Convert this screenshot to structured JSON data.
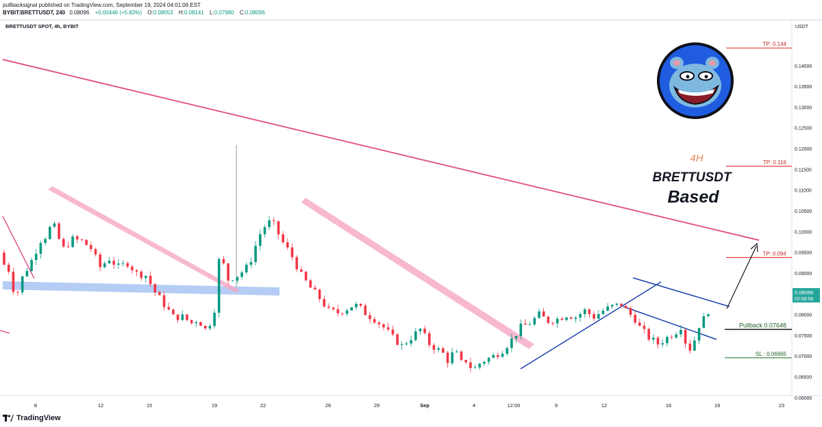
{
  "header": {
    "published_line": "pullbacksignal published on TradingView.com, September 19, 2024 04:01:06 EST",
    "symbol": "BYBIT:BRETTUSDT, 240",
    "last": "0.08096",
    "change": "+0.00446 (+5.83%)",
    "open_label": "O:",
    "open": "0.08053",
    "high_label": "H:",
    "high": "0.08141",
    "low_label": "L:",
    "low": "0.07980",
    "close_label": "C:",
    "close": "0.08096"
  },
  "chart_data": {
    "type": "candlestick",
    "title": "BRETTUSDT SPOT, 4h, BYBIT",
    "currency_label": "USDT",
    "ylim": [
      0.0584,
      0.1478
    ],
    "y_ticks": [
      "0.14000",
      "0.13500",
      "0.13000",
      "0.12500",
      "0.12000",
      "0.11500",
      "0.11000",
      "0.10500",
      "0.10000",
      "0.09500",
      "0.09000",
      "0.08500",
      "0.08000",
      "0.07500",
      "0.07000",
      "0.06500",
      "0.06000"
    ],
    "x_ticks": [
      "8",
      "12",
      "15",
      "19",
      "22",
      "26",
      "29",
      "Sep",
      "4",
      "12:00",
      "9",
      "12",
      "16",
      "19",
      "23"
    ],
    "price_series": [
      [
        0.0,
        0.095
      ],
      [
        0.6,
        0.0915
      ],
      [
        1.2,
        0.0905
      ],
      [
        1.7,
        0.0835
      ],
      [
        2.5,
        0.089
      ],
      [
        3.6,
        0.0935
      ],
      [
        4.6,
        0.0985
      ],
      [
        5.2,
        0.099
      ],
      [
        5.8,
        0.1028
      ],
      [
        6.2,
        0.0995
      ],
      [
        7.0,
        0.096
      ],
      [
        8.0,
        0.0982
      ],
      [
        9.0,
        0.0978
      ],
      [
        10.0,
        0.096
      ],
      [
        11.0,
        0.0915
      ],
      [
        12.0,
        0.0935
      ],
      [
        13.0,
        0.0915
      ],
      [
        14.0,
        0.0925
      ],
      [
        15.0,
        0.09
      ],
      [
        16.0,
        0.0895
      ],
      [
        17.0,
        0.0855
      ],
      [
        18.0,
        0.0825
      ],
      [
        19.0,
        0.0795
      ],
      [
        20.0,
        0.0795
      ],
      [
        21.0,
        0.078
      ],
      [
        21.7,
        0.079
      ],
      [
        22.3,
        0.077
      ],
      [
        22.7,
        0.076
      ],
      [
        23.3,
        0.08
      ],
      [
        23.8,
        0.0835
      ],
      [
        24.0,
        0.093
      ],
      [
        24.5,
        0.092
      ],
      [
        25.0,
        0.0885
      ],
      [
        26.0,
        0.0895
      ],
      [
        26.6,
        0.0905
      ],
      [
        27.3,
        0.092
      ],
      [
        27.8,
        0.0955
      ],
      [
        28.5,
        0.0995
      ],
      [
        29.2,
        0.102
      ],
      [
        29.8,
        0.1025
      ],
      [
        30.3,
        0.1005
      ],
      [
        30.8,
        0.098
      ],
      [
        31.3,
        0.0965
      ],
      [
        32.0,
        0.094
      ],
      [
        33.0,
        0.0895
      ],
      [
        34.0,
        0.0865
      ],
      [
        35.0,
        0.084
      ],
      [
        36.0,
        0.081
      ],
      [
        37.0,
        0.0805
      ],
      [
        38.0,
        0.0815
      ],
      [
        38.8,
        0.0825
      ],
      [
        39.5,
        0.0815
      ],
      [
        40.2,
        0.08
      ],
      [
        41.0,
        0.079
      ],
      [
        42.0,
        0.077
      ],
      [
        43.0,
        0.0745
      ],
      [
        44.0,
        0.0725
      ],
      [
        45.0,
        0.0745
      ],
      [
        46.0,
        0.0765
      ],
      [
        47.0,
        0.073
      ],
      [
        48.0,
        0.0715
      ],
      [
        48.6,
        0.0705
      ],
      [
        49.0,
        0.069
      ],
      [
        49.5,
        0.0705
      ],
      [
        50.0,
        0.0705
      ],
      [
        50.6,
        0.068
      ],
      [
        51.0,
        0.069
      ],
      [
        51.8,
        0.0665
      ],
      [
        52.3,
        0.068
      ],
      [
        53.0,
        0.069
      ],
      [
        54.0,
        0.07
      ],
      [
        55.0,
        0.0715
      ],
      [
        56.0,
        0.074
      ],
      [
        57.0,
        0.077
      ],
      [
        58.0,
        0.078
      ],
      [
        59.0,
        0.08
      ],
      [
        60.0,
        0.0785
      ],
      [
        61.0,
        0.079
      ],
      [
        62.0,
        0.08
      ],
      [
        63.0,
        0.0795
      ],
      [
        64.0,
        0.081
      ],
      [
        65.0,
        0.0795
      ],
      [
        66.0,
        0.081
      ],
      [
        67.0,
        0.082
      ],
      [
        68.0,
        0.0825
      ],
      [
        68.5,
        0.0812
      ],
      [
        69.0,
        0.08
      ],
      [
        69.5,
        0.079
      ],
      [
        70.0,
        0.077
      ],
      [
        71.0,
        0.0745
      ],
      [
        72.0,
        0.073
      ],
      [
        73.0,
        0.0745
      ],
      [
        74.0,
        0.076
      ],
      [
        74.6,
        0.0775
      ],
      [
        75.0,
        0.0735
      ],
      [
        75.6,
        0.0715
      ],
      [
        76.0,
        0.074
      ],
      [
        76.5,
        0.0775
      ],
      [
        77.0,
        0.079
      ],
      [
        77.4,
        0.081
      ]
    ],
    "levels": [
      {
        "label": "TP: 0.144",
        "value": 0.1443
      },
      {
        "label": "TP: 0.116",
        "value": 0.1158
      },
      {
        "label": "TP: 0.094",
        "value": 0.0938
      },
      {
        "label": "Pullback 0.07648",
        "value": 0.07648
      },
      {
        "label": "SL : 0.06965",
        "value": 0.06965
      }
    ],
    "current_price": {
      "value": "0.08096",
      "countdown": "02:58:58"
    },
    "annotations": {
      "timeframe": "4H",
      "symbol": "BRETTUSDT",
      "tag": "Based"
    },
    "colors": {
      "up": "#089981",
      "down": "#f23645",
      "trend": "#e0578a",
      "channel": "#1c3faa",
      "support_zone": "#9cbcf0",
      "target": "#e23b3b",
      "timeframe": "#e8845a"
    }
  },
  "footer": {
    "brand": "TradingView"
  }
}
